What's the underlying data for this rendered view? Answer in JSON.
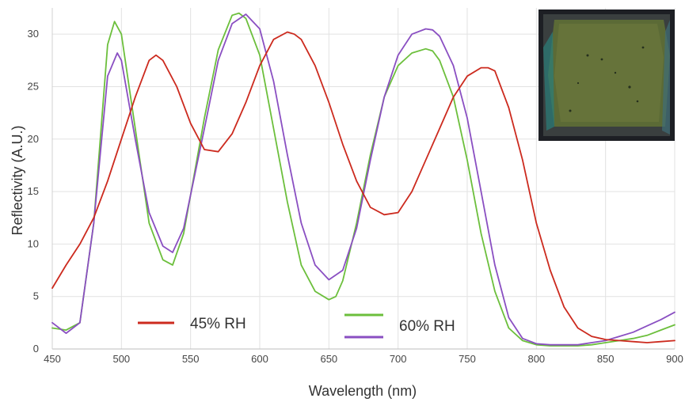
{
  "chart_data": {
    "type": "line",
    "xlabel": "Wavelength (nm)",
    "ylabel": "Reflectivity (A.U.)",
    "xlim": [
      450,
      900
    ],
    "ylim": [
      0,
      32.5
    ],
    "xticks": [
      450,
      500,
      550,
      600,
      650,
      700,
      750,
      800,
      850,
      900
    ],
    "yticks": [
      0,
      5,
      10,
      15,
      20,
      25,
      30
    ],
    "grid": true,
    "legend_labels": [
      "45% RH",
      "60% RH"
    ],
    "legend_placement": "bottom",
    "series": [
      {
        "name": "45% RH",
        "color": "#cc2a1e",
        "x": [
          450,
          460,
          470,
          480,
          490,
          500,
          510,
          520,
          525,
          530,
          540,
          550,
          560,
          570,
          580,
          590,
          600,
          610,
          620,
          625,
          630,
          640,
          650,
          660,
          670,
          680,
          690,
          700,
          710,
          720,
          730,
          740,
          750,
          760,
          765,
          770,
          780,
          790,
          800,
          810,
          820,
          830,
          840,
          850,
          860,
          870,
          880,
          890,
          900
        ],
        "y": [
          5.8,
          8.0,
          10.0,
          12.5,
          16.0,
          20.0,
          24.0,
          27.5,
          28.0,
          27.5,
          25.0,
          21.5,
          19.0,
          18.8,
          20.5,
          23.5,
          27.0,
          29.5,
          30.2,
          30.0,
          29.5,
          27.0,
          23.5,
          19.5,
          16.0,
          13.5,
          12.8,
          13.0,
          15.0,
          18.0,
          21.0,
          24.0,
          26.0,
          26.8,
          26.8,
          26.5,
          23.0,
          18.0,
          12.0,
          7.5,
          4.0,
          2.0,
          1.2,
          0.9,
          0.8,
          0.7,
          0.6,
          0.7,
          0.8
        ]
      },
      {
        "name": "",
        "color": "#6cbf3c",
        "x": [
          450,
          460,
          470,
          480,
          490,
          495,
          500,
          510,
          520,
          530,
          537,
          545,
          560,
          570,
          580,
          585,
          590,
          600,
          610,
          620,
          630,
          640,
          650,
          655,
          660,
          670,
          680,
          690,
          700,
          710,
          720,
          725,
          730,
          740,
          750,
          760,
          770,
          780,
          790,
          800,
          810,
          820,
          830,
          840,
          850,
          860,
          870,
          880,
          890,
          900
        ],
        "y": [
          2.0,
          1.8,
          2.5,
          12.0,
          29.0,
          31.2,
          30.0,
          21.0,
          12.0,
          8.5,
          8.0,
          11.0,
          22.0,
          28.5,
          31.8,
          32.0,
          31.5,
          28.0,
          21.0,
          14.0,
          8.0,
          5.5,
          4.7,
          5.0,
          6.5,
          12.0,
          18.5,
          24.0,
          27.0,
          28.2,
          28.6,
          28.4,
          27.5,
          24.0,
          18.0,
          11.0,
          5.5,
          2.0,
          0.8,
          0.4,
          0.3,
          0.3,
          0.3,
          0.4,
          0.6,
          0.8,
          1.0,
          1.3,
          1.8,
          2.3
        ]
      },
      {
        "name": "",
        "color": "#8a4fc2",
        "x": [
          450,
          460,
          470,
          480,
          490,
          497,
          500,
          510,
          520,
          530,
          537,
          545,
          560,
          570,
          580,
          590,
          600,
          610,
          620,
          630,
          640,
          650,
          660,
          670,
          680,
          690,
          700,
          710,
          720,
          725,
          730,
          740,
          750,
          760,
          770,
          780,
          790,
          800,
          810,
          820,
          830,
          840,
          850,
          860,
          870,
          880,
          890,
          900
        ],
        "y": [
          2.5,
          1.5,
          2.5,
          12.0,
          26.0,
          28.2,
          27.5,
          20.0,
          13.0,
          9.8,
          9.2,
          11.5,
          21.0,
          27.5,
          31.0,
          31.9,
          30.5,
          25.5,
          18.5,
          12.0,
          8.0,
          6.6,
          7.5,
          11.5,
          18.0,
          24.0,
          28.0,
          30.0,
          30.5,
          30.4,
          29.8,
          27.0,
          22.0,
          15.0,
          8.0,
          3.0,
          1.0,
          0.5,
          0.4,
          0.4,
          0.4,
          0.6,
          0.8,
          1.2,
          1.6,
          2.2,
          2.8,
          3.5
        ]
      }
    ]
  }
}
